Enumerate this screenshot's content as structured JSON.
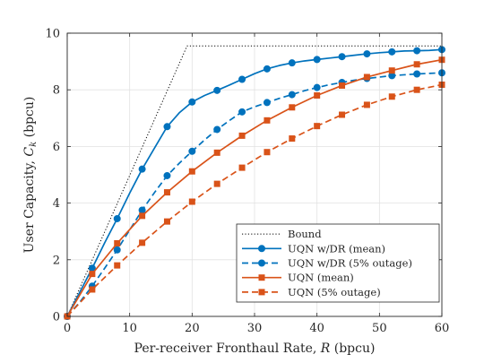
{
  "chart_data": {
    "type": "line",
    "xlabel": {
      "prefix": "Per-receiver Fronthaul Rate, ",
      "symbol": "R",
      "suffix": " (bpcu)"
    },
    "ylabel": {
      "prefix": "User Capacity, ",
      "symbol": "C",
      "subscript": "k",
      "suffix": " (bpcu)"
    },
    "xlim": [
      0,
      60
    ],
    "ylim": [
      0,
      10
    ],
    "xticks": [
      0,
      10,
      20,
      30,
      40,
      50,
      60
    ],
    "yticks": [
      0,
      2,
      4,
      6,
      8,
      10
    ],
    "grid": true,
    "legend_position": "bottom-right",
    "series": [
      {
        "name": "Bound",
        "style": "dotted",
        "marker": "none",
        "color": "#000000",
        "x": [
          0,
          19.2,
          60
        ],
        "y": [
          0,
          9.55,
          9.55
        ]
      },
      {
        "name": "UQN w/DR (mean)",
        "style": "solid",
        "marker": "circle",
        "color": "#0072BD",
        "x": [
          0,
          2,
          4,
          6,
          8,
          10,
          12,
          14,
          16,
          18,
          20,
          22,
          24,
          26,
          28,
          30,
          32,
          34,
          36,
          38,
          40,
          42,
          44,
          46,
          48,
          50,
          52,
          54,
          56,
          58,
          60
        ],
        "y": [
          0,
          0.85,
          1.7,
          2.6,
          3.45,
          4.35,
          5.2,
          5.95,
          6.7,
          7.2,
          7.57,
          7.8,
          7.98,
          8.17,
          8.37,
          8.57,
          8.74,
          8.86,
          8.95,
          9.02,
          9.07,
          9.12,
          9.17,
          9.22,
          9.27,
          9.31,
          9.34,
          9.37,
          9.38,
          9.39,
          9.42
        ],
        "markers_at": [
          0,
          4,
          8,
          12,
          16,
          20,
          24,
          28,
          32,
          36,
          40,
          44,
          48,
          52,
          56,
          60
        ]
      },
      {
        "name": "UQN w/DR (5% outage)",
        "style": "dashed",
        "marker": "circle",
        "color": "#0072BD",
        "x": [
          0,
          2,
          4,
          6,
          8,
          10,
          12,
          14,
          16,
          18,
          20,
          22,
          24,
          26,
          28,
          30,
          32,
          34,
          36,
          38,
          40,
          42,
          44,
          46,
          48,
          50,
          52,
          54,
          56,
          58,
          60
        ],
        "y": [
          0,
          0.5,
          1.07,
          1.7,
          2.35,
          3.05,
          3.75,
          4.38,
          4.97,
          5.42,
          5.83,
          6.23,
          6.6,
          6.92,
          7.22,
          7.4,
          7.55,
          7.7,
          7.83,
          7.97,
          8.08,
          8.18,
          8.26,
          8.34,
          8.4,
          8.45,
          8.5,
          8.53,
          8.56,
          8.58,
          8.6
        ],
        "markers_at": [
          0,
          4,
          8,
          12,
          16,
          20,
          24,
          28,
          32,
          36,
          40,
          44,
          48,
          52,
          56,
          60
        ]
      },
      {
        "name": "UQN (mean)",
        "style": "solid",
        "marker": "square",
        "color": "#D95319",
        "x": [
          0,
          4,
          8,
          12,
          16,
          20,
          24,
          28,
          32,
          36,
          40,
          44,
          48,
          52,
          56,
          60
        ],
        "y": [
          0,
          1.5,
          2.58,
          3.55,
          4.38,
          5.12,
          5.78,
          6.38,
          6.92,
          7.38,
          7.8,
          8.15,
          8.45,
          8.68,
          8.9,
          9.06
        ]
      },
      {
        "name": "UQN (5% outage)",
        "style": "dashed",
        "marker": "square",
        "color": "#D95319",
        "x": [
          0,
          4,
          8,
          12,
          16,
          20,
          24,
          28,
          32,
          36,
          40,
          44,
          48,
          52,
          56,
          60
        ],
        "y": [
          0,
          0.95,
          1.8,
          2.6,
          3.35,
          4.05,
          4.68,
          5.25,
          5.8,
          6.28,
          6.72,
          7.12,
          7.47,
          7.76,
          8.0,
          8.18
        ]
      }
    ]
  }
}
